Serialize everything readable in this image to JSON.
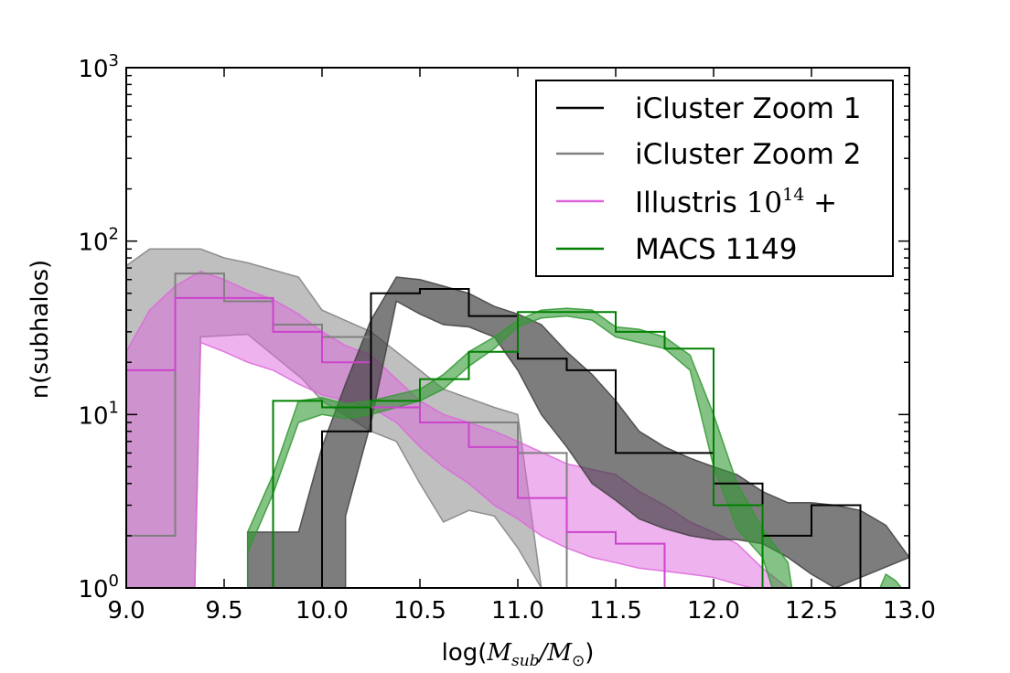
{
  "chart_data": {
    "type": "line",
    "title": "",
    "xlabel": {
      "prefix": "log(",
      "num": "M",
      "num_sub": "sub",
      "slash": "/",
      "den": "M",
      "den_sub": "⊙",
      "suffix": ")"
    },
    "ylabel": "n(subhalos)",
    "xlim": [
      9.0,
      13.0
    ],
    "ylim": [
      1,
      1000
    ],
    "yscale": "log",
    "x_ticks": [
      9.0,
      9.5,
      10.0,
      10.5,
      11.0,
      11.5,
      12.0,
      12.5,
      13.0
    ],
    "x_tick_labels": [
      "9.0",
      "9.5",
      "10.0",
      "10.5",
      "11.0",
      "11.5",
      "12.0",
      "12.5",
      "13.0"
    ],
    "y_ticks": [
      {
        "value": 1,
        "base": "10",
        "exp": "0"
      },
      {
        "value": 10,
        "base": "10",
        "exp": "1"
      },
      {
        "value": 100,
        "base": "10",
        "exp": "2"
      },
      {
        "value": 1000,
        "base": "10",
        "exp": "3"
      }
    ],
    "legend": {
      "position": "top-right",
      "entries": [
        {
          "label": "iCluster Zoom 1",
          "color": "#000000"
        },
        {
          "label": "iCluster Zoom 2",
          "color": "#808080"
        },
        {
          "label": "Illustris ",
          "math": "10",
          "math_sup": "14",
          "math_tail": " +",
          "color": "#dd66dd"
        },
        {
          "label": "MACS 1149",
          "color": "#008000"
        }
      ]
    },
    "bands": [
      {
        "name": "iCluster Zoom 2 band",
        "color": "#808080",
        "opacity": 0.5,
        "upper": [
          [
            9.0,
            72
          ],
          [
            9.12,
            90
          ],
          [
            9.38,
            90
          ],
          [
            9.5,
            80
          ],
          [
            9.62,
            75
          ],
          [
            9.88,
            62
          ],
          [
            10.0,
            40
          ],
          [
            10.25,
            30
          ],
          [
            10.5,
            18
          ],
          [
            10.62,
            14
          ],
          [
            10.88,
            11
          ],
          [
            11.0,
            10
          ],
          [
            11.12,
            1
          ]
        ],
        "lower": [
          [
            9.0,
            1
          ],
          [
            9.35,
            1
          ],
          [
            9.38,
            28
          ],
          [
            9.62,
            29
          ],
          [
            9.9,
            16
          ],
          [
            10.0,
            12
          ],
          [
            10.25,
            8
          ],
          [
            10.38,
            7
          ],
          [
            10.5,
            4
          ],
          [
            10.62,
            2.4
          ],
          [
            10.75,
            2.8
          ],
          [
            10.88,
            2.6
          ],
          [
            11.0,
            1.7
          ],
          [
            11.12,
            1
          ]
        ]
      },
      {
        "name": "Illustris 10^14+ band",
        "color": "#dd66dd",
        "opacity": 0.5,
        "upper": [
          [
            9.0,
            23
          ],
          [
            9.12,
            40
          ],
          [
            9.25,
            55
          ],
          [
            9.38,
            67
          ],
          [
            9.5,
            60
          ],
          [
            9.62,
            52
          ],
          [
            9.75,
            46
          ],
          [
            9.88,
            38
          ],
          [
            10.0,
            30
          ],
          [
            10.12,
            25
          ],
          [
            10.25,
            22
          ],
          [
            10.38,
            16
          ],
          [
            10.5,
            12
          ],
          [
            10.62,
            10
          ],
          [
            10.75,
            9
          ],
          [
            10.88,
            8
          ],
          [
            11.0,
            7
          ],
          [
            11.25,
            5.2
          ],
          [
            11.5,
            4.5
          ],
          [
            11.62,
            3.6
          ],
          [
            11.75,
            3
          ],
          [
            11.88,
            2.4
          ],
          [
            12.0,
            2.1
          ],
          [
            12.12,
            1.8
          ],
          [
            12.25,
            1.3
          ],
          [
            12.38,
            1
          ]
        ],
        "lower": [
          [
            9.0,
            1
          ],
          [
            9.35,
            1
          ],
          [
            9.38,
            26
          ],
          [
            9.5,
            23
          ],
          [
            9.62,
            20
          ],
          [
            9.75,
            18
          ],
          [
            9.88,
            15
          ],
          [
            10.0,
            13
          ],
          [
            10.12,
            12
          ],
          [
            10.25,
            11
          ],
          [
            10.38,
            9
          ],
          [
            10.5,
            6.5
          ],
          [
            10.62,
            5
          ],
          [
            10.75,
            4
          ],
          [
            10.88,
            3
          ],
          [
            11.0,
            2.5
          ],
          [
            11.12,
            2
          ],
          [
            11.25,
            1.7
          ],
          [
            11.38,
            1.5
          ],
          [
            11.5,
            1.4
          ],
          [
            11.62,
            1.3
          ],
          [
            11.75,
            1.25
          ],
          [
            11.88,
            1.2
          ],
          [
            12.0,
            1.15
          ],
          [
            12.12,
            1.05
          ],
          [
            12.2,
            1
          ]
        ]
      },
      {
        "name": "iCluster Zoom 1 band",
        "color": "#404040",
        "opacity": 0.68,
        "upper": [
          [
            9.62,
            1
          ],
          [
            9.62,
            2.1
          ],
          [
            9.88,
            2.1
          ],
          [
            10.0,
            6.5
          ],
          [
            10.12,
            15
          ],
          [
            10.25,
            35
          ],
          [
            10.38,
            62
          ],
          [
            10.5,
            60
          ],
          [
            10.62,
            55
          ],
          [
            10.75,
            50
          ],
          [
            10.88,
            42
          ],
          [
            11.0,
            38
          ],
          [
            11.12,
            33
          ],
          [
            11.25,
            23
          ],
          [
            11.38,
            17
          ],
          [
            11.5,
            12
          ],
          [
            11.62,
            8
          ],
          [
            11.75,
            6.5
          ],
          [
            11.88,
            5.6
          ],
          [
            12.0,
            5
          ],
          [
            12.12,
            4.5
          ],
          [
            12.25,
            3.6
          ],
          [
            12.38,
            3.1
          ],
          [
            12.5,
            3.1
          ],
          [
            12.62,
            3
          ],
          [
            12.75,
            2.8
          ],
          [
            12.88,
            2.3
          ],
          [
            13.0,
            1.5
          ]
        ],
        "lower": [
          [
            10.12,
            1
          ],
          [
            10.12,
            2.6
          ],
          [
            10.25,
            9
          ],
          [
            10.38,
            45
          ],
          [
            10.5,
            38
          ],
          [
            10.62,
            33
          ],
          [
            10.75,
            32
          ],
          [
            10.88,
            28
          ],
          [
            11.0,
            18
          ],
          [
            11.12,
            10
          ],
          [
            11.25,
            6.5
          ],
          [
            11.38,
            4
          ],
          [
            11.5,
            3.2
          ],
          [
            11.62,
            2.5
          ],
          [
            11.75,
            2.2
          ],
          [
            11.88,
            2
          ],
          [
            12.0,
            1.9
          ],
          [
            12.12,
            1.9
          ],
          [
            12.25,
            1.8
          ],
          [
            12.38,
            1.5
          ],
          [
            12.5,
            1.2
          ],
          [
            12.62,
            1
          ]
        ]
      },
      {
        "name": "MACS 1149 band",
        "color": "#339933",
        "opacity": 0.6,
        "upper": [
          [
            9.62,
            2.1
          ],
          [
            9.75,
            4.5
          ],
          [
            9.88,
            12
          ],
          [
            10.0,
            12.5
          ],
          [
            10.12,
            11.5
          ],
          [
            10.25,
            12
          ],
          [
            10.38,
            13
          ],
          [
            10.5,
            14
          ],
          [
            10.62,
            17
          ],
          [
            10.75,
            23
          ],
          [
            10.88,
            28
          ],
          [
            11.0,
            35
          ],
          [
            11.12,
            40
          ],
          [
            11.25,
            41
          ],
          [
            11.38,
            40
          ],
          [
            11.5,
            32
          ],
          [
            11.62,
            31
          ],
          [
            11.75,
            28
          ],
          [
            11.88,
            22
          ],
          [
            12.0,
            10
          ],
          [
            12.12,
            4
          ],
          [
            12.25,
            2.2
          ],
          [
            12.38,
            1.4
          ],
          [
            12.4,
            1
          ]
        ],
        "lower": [
          [
            9.62,
            1
          ],
          [
            9.62,
            1.6
          ],
          [
            9.75,
            3.5
          ],
          [
            9.88,
            9
          ],
          [
            10.0,
            10
          ],
          [
            10.12,
            9.5
          ],
          [
            10.25,
            10
          ],
          [
            10.38,
            11
          ],
          [
            10.5,
            12
          ],
          [
            10.62,
            14
          ],
          [
            10.75,
            19
          ],
          [
            10.88,
            24
          ],
          [
            11.0,
            32
          ],
          [
            11.12,
            36
          ],
          [
            11.25,
            37
          ],
          [
            11.38,
            35
          ],
          [
            11.5,
            28
          ],
          [
            11.62,
            26
          ],
          [
            11.75,
            24
          ],
          [
            11.88,
            18
          ],
          [
            12.0,
            5
          ],
          [
            12.12,
            2.2
          ],
          [
            12.25,
            1.5
          ],
          [
            12.3,
            1
          ]
        ]
      },
      {
        "name": "MACS 1149 band edge",
        "color": "#339933",
        "opacity": 0.6,
        "upper": [
          [
            12.85,
            1
          ],
          [
            12.88,
            1.2
          ],
          [
            12.93,
            1.1
          ],
          [
            12.96,
            1
          ]
        ],
        "lower": [
          [
            12.85,
            1
          ],
          [
            12.96,
            1
          ]
        ]
      }
    ],
    "series": [
      {
        "name": "iCluster Zoom 2",
        "color": "#808080",
        "width": 2,
        "bins": [
          9.0,
          9.25,
          9.5,
          9.75,
          10.0,
          10.25,
          10.5,
          10.75,
          11.0,
          11.25
        ],
        "values": [
          2,
          65,
          45,
          33,
          28,
          12,
          9,
          9,
          6
        ],
        "start_at_floor": false
      },
      {
        "name": "Illustris 10^14+",
        "color": "#cc44cc",
        "width": 2,
        "bins": [
          9.0,
          9.25,
          9.5,
          9.75,
          10.0,
          10.25,
          10.5,
          10.75,
          11.0,
          11.25,
          11.5,
          11.75
        ],
        "values": [
          18,
          47,
          47,
          30,
          20,
          11,
          9,
          6.5,
          3.3,
          2.1,
          1.8
        ],
        "start_at_floor": false
      },
      {
        "name": "iCluster Zoom 1",
        "color": "#000000",
        "width": 2,
        "bins": [
          10.0,
          10.25,
          10.5,
          10.75,
          11.0,
          11.25,
          11.5,
          11.75,
          12.0,
          12.25,
          12.5,
          12.75
        ],
        "values": [
          8,
          50,
          53,
          37,
          21,
          18,
          6,
          6,
          4,
          2,
          3
        ],
        "start_at_floor": true
      },
      {
        "name": "MACS 1149",
        "color": "#008000",
        "width": 2,
        "bins": [
          9.75,
          10.0,
          10.25,
          10.5,
          10.75,
          11.0,
          11.25,
          11.5,
          11.75,
          12.0,
          12.25
        ],
        "values": [
          12,
          11,
          12,
          16,
          23,
          39,
          39,
          30,
          24,
          3
        ],
        "start_at_floor": true
      }
    ]
  }
}
